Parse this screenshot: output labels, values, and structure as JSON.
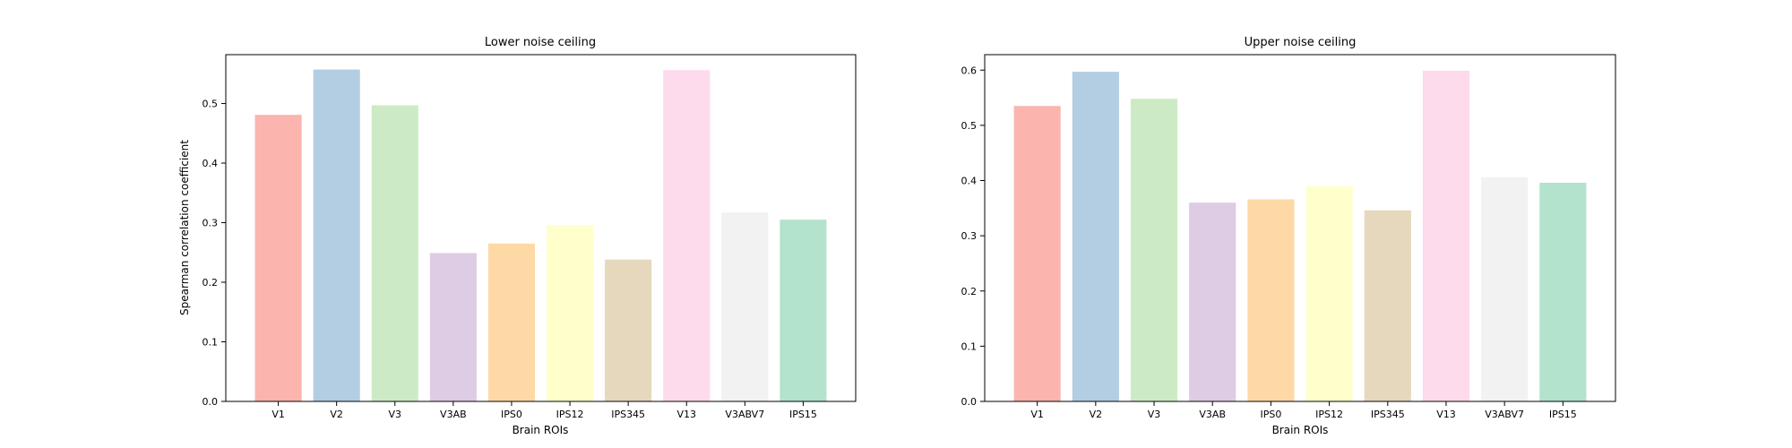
{
  "figure": {
    "shared_xlabel": "Brain ROIs",
    "shared_ylabel": "Spearman correlation coefficient"
  },
  "chart_data": [
    {
      "type": "bar",
      "title": "Lower noise ceiling",
      "xlabel": "Brain ROIs",
      "ylabel": "Spearman correlation coefficient",
      "categories": [
        "V1",
        "V2",
        "V3",
        "V3AB",
        "IPS0",
        "IPS12",
        "IPS345",
        "V13",
        "V3ABV7",
        "IPS15"
      ],
      "values": [
        0.481,
        0.557,
        0.497,
        0.249,
        0.265,
        0.296,
        0.238,
        0.556,
        0.317,
        0.305
      ],
      "colors": [
        "#fbb4ae",
        "#b3cde3",
        "#ccebc5",
        "#decbe4",
        "#fed9a6",
        "#ffffcc",
        "#e5d8bd",
        "#fddaec",
        "#f2f2f2",
        "#b3e2cd"
      ],
      "ylim": [
        0,
        0.582
      ],
      "yticks": [
        0.0,
        0.1,
        0.2,
        0.3,
        0.4,
        0.5
      ],
      "grid": false,
      "legend": "none"
    },
    {
      "type": "bar",
      "title": "Upper noise ceiling",
      "xlabel": "Brain ROIs",
      "ylabel": "",
      "categories": [
        "V1",
        "V2",
        "V3",
        "V3AB",
        "IPS0",
        "IPS12",
        "IPS345",
        "V13",
        "V3ABV7",
        "IPS15"
      ],
      "values": [
        0.535,
        0.597,
        0.548,
        0.36,
        0.366,
        0.39,
        0.346,
        0.599,
        0.406,
        0.396
      ],
      "colors": [
        "#fbb4ae",
        "#b3cde3",
        "#ccebc5",
        "#decbe4",
        "#fed9a6",
        "#ffffcc",
        "#e5d8bd",
        "#fddaec",
        "#f2f2f2",
        "#b3e2cd"
      ],
      "ylim": [
        0,
        0.628
      ],
      "yticks": [
        0.0,
        0.1,
        0.2,
        0.3,
        0.4,
        0.5,
        0.6
      ],
      "grid": false,
      "legend": "none"
    }
  ]
}
